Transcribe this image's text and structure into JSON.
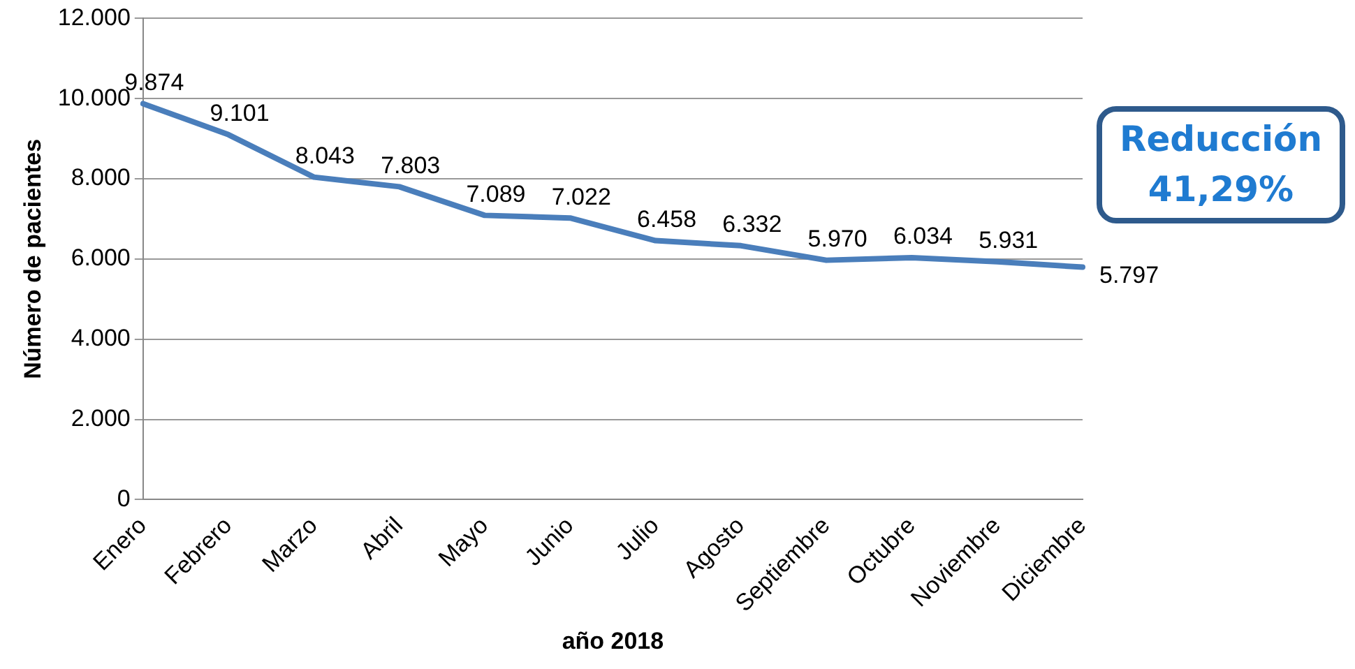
{
  "chart_data": {
    "type": "line",
    "xlabel": "año 2018",
    "ylabel": "Número de pacientes",
    "categories": [
      "Enero",
      "Febrero",
      "Marzo",
      "Abril",
      "Mayo",
      "Junio",
      "Julio",
      "Agosto",
      "Septiembre",
      "Octubre",
      "Noviembre",
      "Diciembre"
    ],
    "series": [
      {
        "color": "#4a7ebb",
        "values": [
          9874,
          9101,
          8043,
          7803,
          7089,
          7022,
          6458,
          6332,
          5970,
          6034,
          5931,
          5797
        ]
      }
    ],
    "value_labels": [
      "9.874",
      "9.101",
      "8.043",
      "7.803",
      "7.089",
      "7.022",
      "6.458",
      "6.332",
      "5.970",
      "6.034",
      "5.931",
      "5.797"
    ],
    "ylim": [
      0,
      12000
    ],
    "yticks": [
      {
        "value": 0,
        "label": "0"
      },
      {
        "value": 2000,
        "label": "2.000"
      },
      {
        "value": 4000,
        "label": "4.000"
      },
      {
        "value": 6000,
        "label": "6.000"
      },
      {
        "value": 8000,
        "label": "8.000"
      },
      {
        "value": 10000,
        "label": "10.000"
      },
      {
        "value": 12000,
        "label": "12.000"
      }
    ],
    "grid": "y",
    "legend": false,
    "marker": "none",
    "line_style": "solid",
    "annotations": [
      "Reducción 41,29%"
    ]
  }
}
